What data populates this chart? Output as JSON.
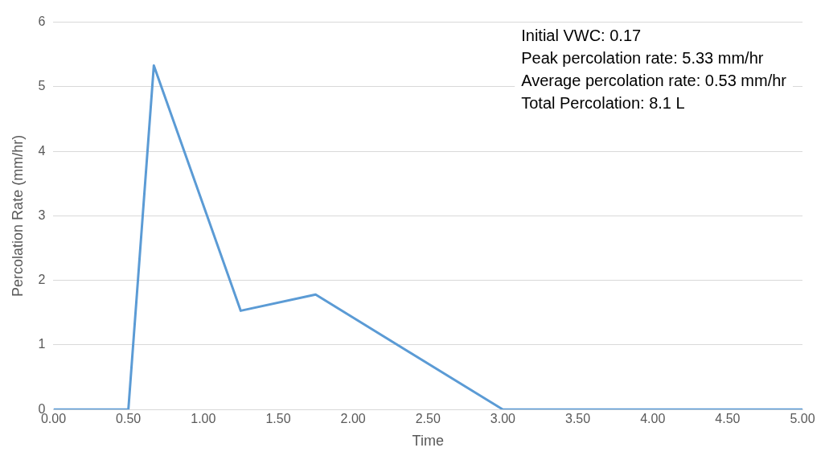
{
  "chart_data": {
    "type": "line",
    "xlabel": "Time",
    "ylabel": "Percolation Rate (mm/hr)",
    "x": [
      0,
      0.5,
      0.67,
      1.25,
      1.75,
      3,
      5
    ],
    "series": [
      {
        "color": "#5b9bd5",
        "values": [
          0,
          0,
          5.33,
          1.53,
          1.78,
          0,
          0
        ]
      }
    ],
    "xlim": [
      0,
      5
    ],
    "xticks": [
      {
        "value": 0,
        "label": "0.00"
      },
      {
        "value": 0.5,
        "label": "0.50"
      },
      {
        "value": 1,
        "label": "1.00"
      },
      {
        "value": 1.5,
        "label": "1.50"
      },
      {
        "value": 2,
        "label": "2.00"
      },
      {
        "value": 2.5,
        "label": "2.50"
      },
      {
        "value": 3,
        "label": "3.00"
      },
      {
        "value": 3.5,
        "label": "3.50"
      },
      {
        "value": 4,
        "label": "4.00"
      },
      {
        "value": 4.5,
        "label": "4.50"
      },
      {
        "value": 5,
        "label": "5.00"
      }
    ],
    "ylim": [
      0,
      6
    ],
    "yticks": [
      0,
      1,
      2,
      3,
      4,
      5,
      6
    ],
    "grid": "y",
    "legend": false,
    "marker": "none",
    "line_style": "solid",
    "annotations": [
      "Initial VWC: 0.17",
      "Peak percolation rate: 5.33 mm/hr",
      "Average percolation rate: 0.53 mm/hr",
      "Total Percolation: 8.1 L"
    ]
  }
}
